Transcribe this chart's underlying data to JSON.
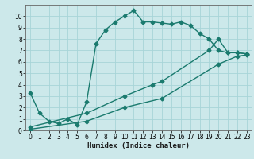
{
  "xlabel": "Humidex (Indice chaleur)",
  "bg_color": "#cce8ea",
  "grid_color": "#a8d4d8",
  "line_color": "#1a7a6e",
  "xlim": [
    -0.5,
    23.5
  ],
  "ylim": [
    0,
    11
  ],
  "xticks": [
    0,
    1,
    2,
    3,
    4,
    5,
    6,
    7,
    8,
    9,
    10,
    11,
    12,
    13,
    14,
    15,
    16,
    17,
    18,
    19,
    20,
    21,
    22,
    23
  ],
  "yticks": [
    0,
    1,
    2,
    3,
    4,
    5,
    6,
    7,
    8,
    9,
    10
  ],
  "line1_x": [
    0,
    1,
    2,
    3,
    4,
    5,
    6,
    7,
    8,
    9,
    10,
    11,
    12,
    13,
    14,
    15,
    16,
    17,
    18,
    19,
    20,
    21,
    22,
    23
  ],
  "line1_y": [
    3.3,
    1.5,
    0.8,
    0.6,
    1.0,
    0.5,
    2.5,
    7.6,
    8.8,
    9.5,
    10.0,
    10.5,
    9.5,
    9.5,
    9.4,
    9.3,
    9.5,
    9.2,
    8.5,
    8.0,
    7.0,
    6.8,
    6.8,
    6.7
  ],
  "line2_x": [
    0,
    6,
    10,
    13,
    14,
    19,
    20,
    21,
    22,
    23
  ],
  "line2_y": [
    0.3,
    1.5,
    3.0,
    4.0,
    4.3,
    7.0,
    8.0,
    6.8,
    6.8,
    6.7
  ],
  "line3_x": [
    0,
    6,
    10,
    14,
    20,
    22,
    23
  ],
  "line3_y": [
    0.1,
    0.8,
    2.0,
    2.8,
    5.8,
    6.5,
    6.6
  ],
  "marker": "D",
  "marker_size": 2.5,
  "linewidth": 1.0,
  "tick_fontsize": 5.5,
  "xlabel_fontsize": 6.5
}
